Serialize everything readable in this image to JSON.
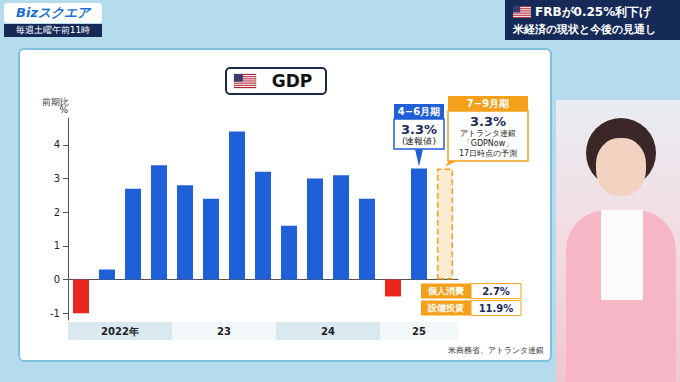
{
  "header": {
    "logo": "Bizスクエア",
    "schedule": "毎週土曜午前11時",
    "headline": [
      "FRBが0.25%利下げ",
      "米経済の現状と今後の見通し"
    ]
  },
  "chart_data": {
    "type": "bar",
    "title": "GDP",
    "subtitle": "前期比",
    "ylabel": "%",
    "categories": [
      "2022年",
      null,
      null,
      null,
      "23",
      null,
      null,
      null,
      "24",
      null,
      null,
      null,
      "25",
      null,
      null
    ],
    "series": [
      {
        "values": [
          -1.0,
          0.3,
          2.7,
          3.4,
          2.8,
          2.4,
          4.4,
          3.2,
          1.6,
          3.0,
          3.1,
          2.4,
          -0.5,
          3.3,
          null
        ],
        "colors": [
          "#e8261c",
          "#1f5fd8",
          "#1f5fd8",
          "#1f5fd8",
          "#1f5fd8",
          "#1f5fd8",
          "#1f5fd8",
          "#1f5fd8",
          "#1f5fd8",
          "#1f5fd8",
          "#1f5fd8",
          "#1f5fd8",
          "#e8261c",
          "#1f5fd8",
          null
        ]
      },
      {
        "values": [
          null,
          null,
          null,
          null,
          null,
          null,
          null,
          null,
          null,
          null,
          null,
          null,
          null,
          null,
          3.3
        ],
        "color": "#f5a01b",
        "line_style": "dashed"
      }
    ],
    "ylim": [
      -1.2,
      4.8
    ],
    "yticks": [
      -1,
      0,
      1,
      2,
      3,
      4
    ],
    "grid": false,
    "data_labels": false,
    "annotations": [
      {
        "at": 13,
        "color": "#1f5fd8",
        "lines": [
          "4−6月期",
          "3.3%",
          "(速報値)"
        ]
      },
      {
        "at": 14,
        "color": "#f5a01b",
        "lines": [
          "7−9月期",
          "3.3%",
          "アトランタ連銀",
          "「GDPNow」",
          "17日時点の予測"
        ]
      }
    ],
    "breakdown": [
      {
        "label": "個人消費",
        "value": "2.7%"
      },
      {
        "label": "設備投資",
        "value": "11.9%"
      }
    ],
    "source": "米商務省、アトランタ連銀"
  }
}
